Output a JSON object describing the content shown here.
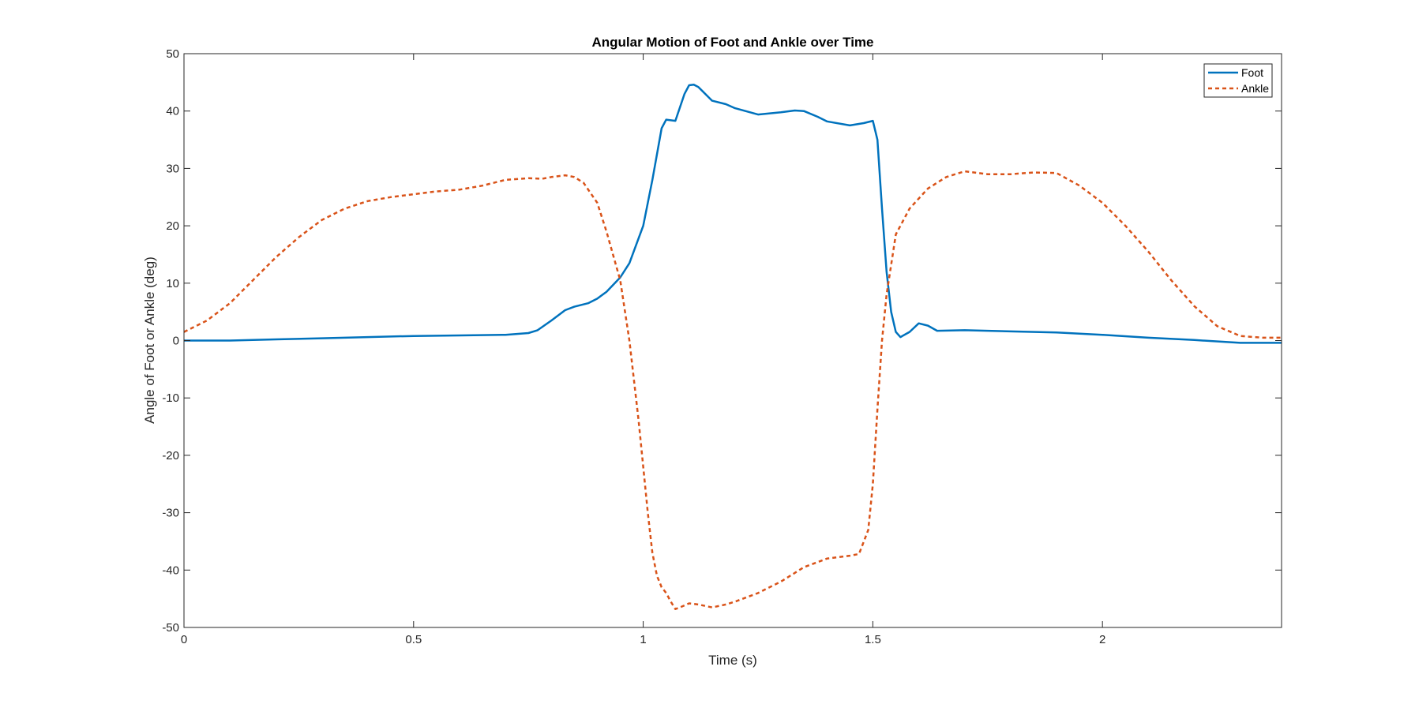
{
  "chart_data": {
    "type": "line",
    "title": "Angular Motion of Foot and Ankle over Time",
    "xlabel": "Time (s)",
    "ylabel": "Angle of Foot or Ankle (deg)",
    "xlim": [
      0,
      2.39
    ],
    "ylim": [
      -50,
      50
    ],
    "xticks": [
      0,
      0.5,
      1,
      1.5,
      2
    ],
    "xtick_labels": [
      "0",
      "0.5",
      "1",
      "1.5",
      "2"
    ],
    "yticks": [
      -50,
      -40,
      -30,
      -20,
      -10,
      0,
      10,
      20,
      30,
      40,
      50
    ],
    "ytick_labels": [
      "-50",
      "-40",
      "-30",
      "-20",
      "-10",
      "0",
      "10",
      "20",
      "30",
      "40",
      "50"
    ],
    "grid": false,
    "legend_position": "top-right",
    "series": [
      {
        "name": "Foot",
        "color": "#0072BD",
        "line_style": "solid",
        "x": [
          0,
          0.1,
          0.2,
          0.3,
          0.4,
          0.5,
          0.6,
          0.7,
          0.75,
          0.77,
          0.8,
          0.83,
          0.85,
          0.88,
          0.9,
          0.92,
          0.95,
          0.97,
          1.0,
          1.02,
          1.04,
          1.05,
          1.07,
          1.09,
          1.1,
          1.11,
          1.12,
          1.15,
          1.18,
          1.2,
          1.25,
          1.3,
          1.33,
          1.35,
          1.38,
          1.4,
          1.45,
          1.48,
          1.5,
          1.51,
          1.52,
          1.53,
          1.54,
          1.55,
          1.56,
          1.58,
          1.6,
          1.62,
          1.64,
          1.7,
          1.8,
          1.9,
          2.0,
          2.1,
          2.2,
          2.3,
          2.39
        ],
        "values": [
          0,
          0,
          0.2,
          0.4,
          0.6,
          0.8,
          0.9,
          1.0,
          1.3,
          1.8,
          3.5,
          5.3,
          5.9,
          6.5,
          7.3,
          8.5,
          11.0,
          13.5,
          20.0,
          28.0,
          37.0,
          38.5,
          38.3,
          43.0,
          44.5,
          44.6,
          44.2,
          41.8,
          41.2,
          40.5,
          39.4,
          39.8,
          40.1,
          40.0,
          39.0,
          38.2,
          37.5,
          37.9,
          38.3,
          35.0,
          23.0,
          12.0,
          5.0,
          1.5,
          0.6,
          1.5,
          3.0,
          2.6,
          1.7,
          1.8,
          1.6,
          1.4,
          1.0,
          0.5,
          0.1,
          -0.4,
          -0.4
        ]
      },
      {
        "name": "Ankle",
        "color": "#D95319",
        "line_style": "dashed",
        "x": [
          0,
          0.05,
          0.1,
          0.15,
          0.2,
          0.25,
          0.3,
          0.35,
          0.4,
          0.45,
          0.5,
          0.55,
          0.6,
          0.65,
          0.7,
          0.75,
          0.78,
          0.8,
          0.83,
          0.85,
          0.87,
          0.9,
          0.92,
          0.95,
          0.97,
          0.99,
          1.0,
          1.01,
          1.02,
          1.03,
          1.04,
          1.05,
          1.06,
          1.07,
          1.08,
          1.1,
          1.12,
          1.15,
          1.18,
          1.2,
          1.25,
          1.3,
          1.35,
          1.4,
          1.45,
          1.47,
          1.49,
          1.5,
          1.51,
          1.52,
          1.53,
          1.55,
          1.58,
          1.62,
          1.66,
          1.7,
          1.75,
          1.8,
          1.85,
          1.9,
          1.95,
          2.0,
          2.05,
          2.1,
          2.15,
          2.2,
          2.25,
          2.3,
          2.35,
          2.39
        ],
        "values": [
          1.5,
          3.5,
          6.5,
          10.5,
          14.5,
          18.0,
          21.0,
          23.0,
          24.3,
          25.0,
          25.5,
          26.0,
          26.3,
          27.0,
          28.0,
          28.3,
          28.2,
          28.5,
          28.8,
          28.5,
          27.5,
          24.0,
          19.0,
          10.5,
          0.0,
          -14.0,
          -22.0,
          -30.0,
          -37.0,
          -41.0,
          -43.0,
          -44.0,
          -45.5,
          -46.8,
          -46.5,
          -45.8,
          -46.0,
          -46.5,
          -46.0,
          -45.5,
          -44.0,
          -42.0,
          -39.5,
          -38.0,
          -37.5,
          -37.2,
          -33.0,
          -25.0,
          -12.0,
          0.0,
          8.0,
          18.5,
          23.0,
          26.5,
          28.5,
          29.5,
          29.0,
          29.0,
          29.3,
          29.2,
          27.0,
          24.0,
          20.0,
          15.5,
          10.5,
          6.0,
          2.5,
          0.8,
          0.5,
          0.5
        ]
      }
    ]
  }
}
